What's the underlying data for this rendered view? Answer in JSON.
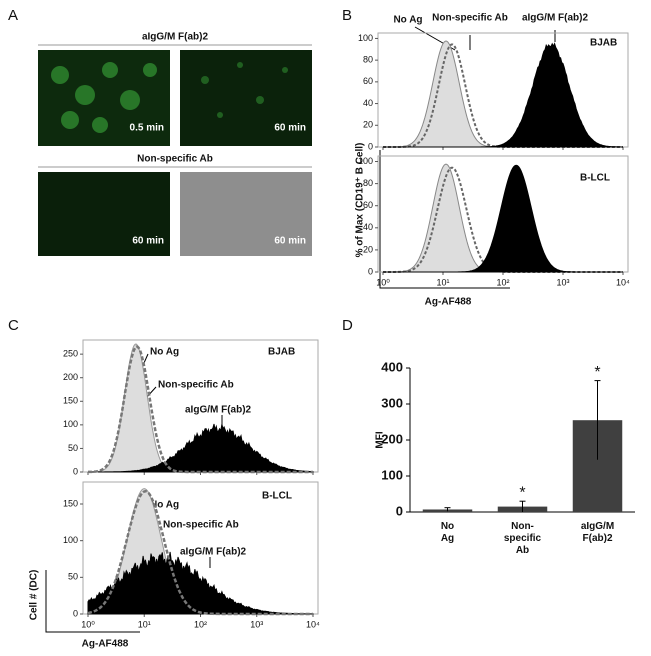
{
  "panel_labels": [
    "A",
    "B",
    "C",
    "D"
  ],
  "panel_a": {
    "title1": "aIgG/M F(ab)2",
    "title2": "Non-specific Ab",
    "times": [
      "0.5 min",
      "60 min",
      "60 min",
      "60 min"
    ]
  },
  "panel_b": {
    "ylabel": "% of Max (CD19⁺ B Cell)",
    "xlabel": "Ag-AF488",
    "ylim": [
      0,
      105
    ],
    "yticks": [
      0,
      20,
      40,
      60,
      80,
      100
    ],
    "xlim": [
      1,
      10000
    ],
    "log_x": true,
    "xticks": [
      {
        "value": 1,
        "label": "10⁰"
      },
      {
        "value": 10,
        "label": "10¹"
      },
      {
        "value": 100,
        "label": "10²"
      },
      {
        "value": 1000,
        "label": "10³"
      },
      {
        "value": 10000,
        "label": "10⁴"
      }
    ],
    "labels": [
      "No Ag",
      "Non-specific Ab",
      "aIgG/M F(ab)2"
    ],
    "cells": [
      "BJAB",
      "B-LCL"
    ]
  },
  "panel_c": {
    "ylabel": "Cell # (DC)",
    "xlabel": "Ag-AF488",
    "ylim_top": [
      0,
      280
    ],
    "yticks_top": [
      0,
      50,
      100,
      150,
      200,
      250
    ],
    "ylim_bottom": [
      0,
      180
    ],
    "yticks_bottom": [
      0,
      50,
      100,
      150
    ],
    "xlim": [
      1,
      10000
    ],
    "log_x": true,
    "xticks": [
      {
        "value": 1,
        "label": "10⁰"
      },
      {
        "value": 10,
        "label": "10¹"
      },
      {
        "value": 100,
        "label": "10²"
      },
      {
        "value": 1000,
        "label": "10³"
      },
      {
        "value": 10000,
        "label": "10⁴"
      }
    ],
    "labels": [
      "No Ag",
      "Non-specific Ab",
      "aIgG/M F(ab)2"
    ],
    "cells": [
      "BJAB",
      "B-LCL"
    ]
  },
  "chart_data": {
    "type": "bar",
    "ylabel": "MFI",
    "categories": [
      "No Ag",
      "Non-specific Ab",
      "aIgG/M F(ab)2"
    ],
    "values": [
      7,
      15,
      255
    ],
    "errors": [
      5,
      15,
      110
    ],
    "significance": [
      null,
      "*",
      "*"
    ],
    "color": "#404040",
    "ylim": [
      0,
      400
    ],
    "yticks": [
      0,
      100,
      200,
      300,
      400
    ]
  }
}
